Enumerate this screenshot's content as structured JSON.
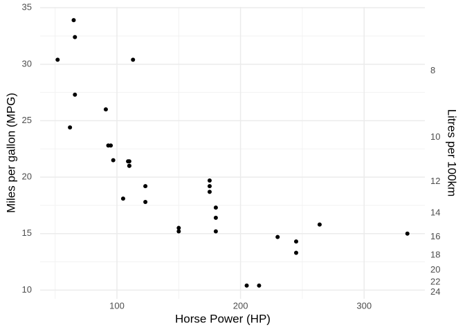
{
  "chart_data": {
    "type": "scatter",
    "x_label": "Horse Power (HP)",
    "y_label": "Miles per gallon (MPG)",
    "y2_label": "Litres per 100km",
    "color": "#000000",
    "series": [
      {
        "name": null,
        "color": "#000000",
        "x": [
          110,
          110,
          93,
          110,
          175,
          105,
          245,
          62,
          95,
          123,
          123,
          180,
          180,
          180,
          205,
          215,
          230,
          66,
          52,
          65,
          97,
          150,
          150,
          245,
          175,
          66,
          91,
          113,
          264,
          175,
          335,
          109
        ],
        "values": [
          21.0,
          21.0,
          22.8,
          21.4,
          18.7,
          18.1,
          14.3,
          24.4,
          22.8,
          19.2,
          17.8,
          16.4,
          17.3,
          15.2,
          10.4,
          10.4,
          14.7,
          32.4,
          30.4,
          33.9,
          21.5,
          15.5,
          15.2,
          13.3,
          19.2,
          27.3,
          26.0,
          30.4,
          15.8,
          19.7,
          15.0,
          21.4
        ]
      }
    ],
    "xlim": [
      37.85,
      349.15
    ],
    "xticks": [
      100,
      200,
      300
    ],
    "xminor": [
      50,
      150,
      250
    ],
    "ylim": [
      9.225,
      35.075
    ],
    "yticks": [
      10,
      15,
      20,
      25,
      30,
      35
    ],
    "yminor": [
      12.5,
      17.5,
      22.5,
      27.5,
      32.5
    ],
    "y2lim": [
      25.5,
      6.706
    ],
    "y2scale": "reciprocal",
    "y2ticks": [
      8,
      10,
      12,
      14,
      16,
      18,
      20,
      22,
      24
    ],
    "grid": true
  }
}
